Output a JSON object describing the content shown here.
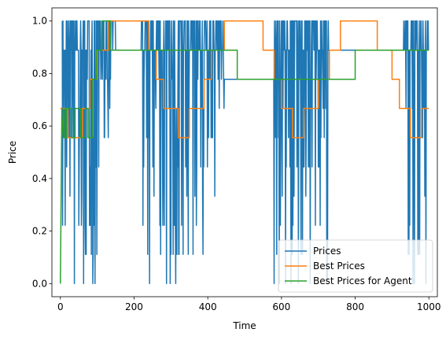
{
  "chart_data": {
    "type": "line",
    "xlabel": "Time",
    "ylabel": "Price",
    "xlim": [
      -23,
      1023
    ],
    "ylim": [
      -0.05,
      1.05
    ],
    "x_ticks": [
      0,
      200,
      400,
      600,
      800,
      1000
    ],
    "x_tick_labels": [
      "0",
      "200",
      "400",
      "600",
      "800",
      "1000"
    ],
    "y_ticks": [
      0.0,
      0.2,
      0.4,
      0.6,
      0.8,
      1.0
    ],
    "y_tick_labels": [
      "0.0",
      "0.2",
      "0.4",
      "0.6",
      "0.8",
      "1.0"
    ],
    "grid": false,
    "legend_position": "lower right",
    "price_levels": [
      0,
      0.111,
      0.222,
      0.333,
      0.444,
      0.556,
      0.667,
      0.778,
      0.889,
      1.0
    ],
    "series": [
      {
        "name": "Prices",
        "color": "#1f77b4",
        "oscillating": true,
        "segments": [
          {
            "x_start": 5,
            "x_end": 110,
            "min": 0.0,
            "max": 1.0
          },
          {
            "x_start": 110,
            "x_end": 150,
            "min": 0.556,
            "max": 1.0
          },
          {
            "x_start": 150,
            "x_end": 220,
            "min": 0.889,
            "max": 0.889,
            "flat": true
          },
          {
            "x_start": 220,
            "x_end": 420,
            "min": 0.0,
            "max": 1.0
          },
          {
            "x_start": 420,
            "x_end": 445,
            "min": 0.556,
            "max": 1.0
          },
          {
            "x_start": 445,
            "x_end": 580,
            "min": 0.778,
            "max": 0.778,
            "flat": true
          },
          {
            "x_start": 580,
            "x_end": 730,
            "min": 0.0,
            "max": 1.0
          },
          {
            "x_start": 730,
            "x_end": 930,
            "min": 0.889,
            "max": 0.889,
            "flat": true
          },
          {
            "x_start": 930,
            "x_end": 1000,
            "min": 0.0,
            "max": 1.0
          }
        ]
      },
      {
        "name": "Best Prices",
        "color": "#ff7f0e",
        "x": [
          0,
          20,
          20,
          40,
          40,
          60,
          60,
          80,
          80,
          100,
          100,
          130,
          130,
          240,
          240,
          260,
          260,
          280,
          280,
          320,
          320,
          350,
          350,
          390,
          390,
          410,
          410,
          445,
          445,
          550,
          550,
          580,
          580,
          600,
          600,
          630,
          630,
          660,
          660,
          700,
          700,
          730,
          730,
          760,
          760,
          860,
          860,
          900,
          900,
          920,
          920,
          950,
          950,
          980,
          980,
          1000
        ],
        "y": [
          0.667,
          0.667,
          0.556,
          0.556,
          0.556,
          0.556,
          0.667,
          0.667,
          0.778,
          0.778,
          0.889,
          0.889,
          1.0,
          1.0,
          0.889,
          0.889,
          0.778,
          0.778,
          0.667,
          0.667,
          0.556,
          0.556,
          0.667,
          0.667,
          0.778,
          0.778,
          0.889,
          0.889,
          1.0,
          1.0,
          0.889,
          0.889,
          0.778,
          0.778,
          0.667,
          0.667,
          0.556,
          0.556,
          0.667,
          0.667,
          0.778,
          0.778,
          0.889,
          0.889,
          1.0,
          1.0,
          0.889,
          0.889,
          0.778,
          0.778,
          0.667,
          0.667,
          0.556,
          0.556,
          0.667,
          0.667
        ]
      },
      {
        "name": "Best Prices for Agent",
        "color": "#2ca02c",
        "x": [
          0,
          4,
          4,
          10,
          10,
          16,
          16,
          30,
          30,
          40,
          40,
          55,
          55,
          68,
          68,
          75,
          75,
          88,
          88,
          98,
          98,
          112,
          112,
          135,
          135,
          175,
          175,
          480,
          480,
          800,
          800,
          1000
        ],
        "y": [
          0.0,
          0.667,
          0.556,
          0.667,
          0.556,
          0.556,
          0.667,
          0.667,
          0.556,
          0.556,
          0.667,
          0.667,
          0.556,
          0.556,
          0.667,
          0.667,
          0.556,
          0.556,
          0.778,
          0.778,
          0.889,
          0.889,
          1.0,
          1.0,
          0.889,
          0.889,
          0.889,
          0.889,
          0.778,
          0.778,
          0.889,
          0.889
        ]
      }
    ]
  }
}
